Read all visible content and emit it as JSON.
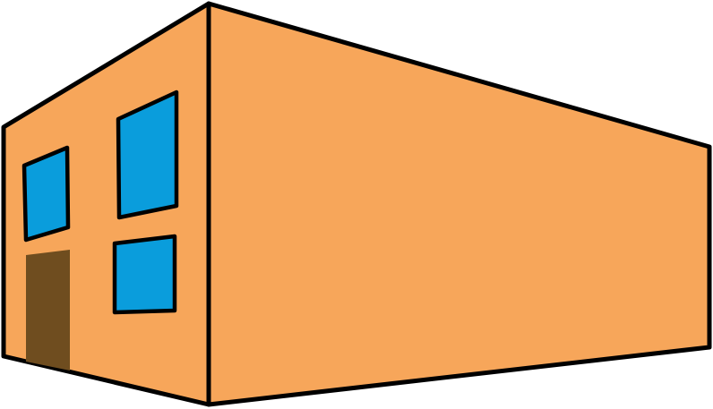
{
  "colors": {
    "background": "#ffffff",
    "wall": "#f7a65a",
    "window_glass": "#0a9ddc",
    "door": "#6f4d1f",
    "outline": "#000000"
  },
  "building": {
    "front_window_count": 3,
    "door_count": 1,
    "visible_walls": [
      "left-front-wall",
      "right-side-wall"
    ]
  }
}
